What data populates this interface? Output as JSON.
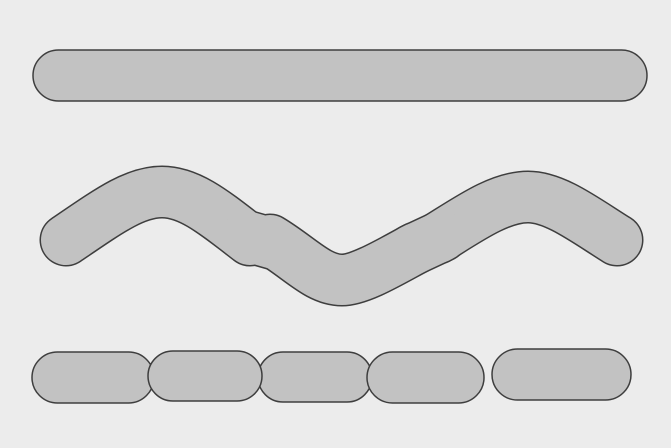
{
  "colors": {
    "background": "#ececec",
    "shape_fill": "#c2c2c2",
    "shape_outline": "#3e3e3e"
  },
  "rows": [
    {
      "name": "straight-capsule",
      "pieces": 1
    },
    {
      "name": "wavy-capsule-chain",
      "pieces": 5
    },
    {
      "name": "capsule-row",
      "pieces": 5
    }
  ]
}
